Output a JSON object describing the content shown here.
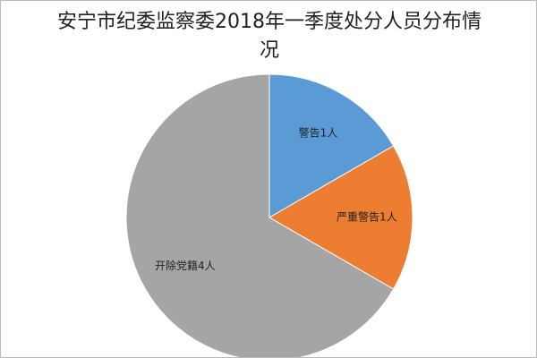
{
  "chart_data": {
    "type": "pie",
    "title": "安宁市纪委监察委2018年一季度处分人员分布情况",
    "values": [
      1,
      1,
      4
    ],
    "value_labels": [
      "警告1人",
      "严重警告1人",
      "开除党籍4人"
    ],
    "colors": [
      "#5b9bd5",
      "#ed7d31",
      "#a5a5a5"
    ]
  }
}
